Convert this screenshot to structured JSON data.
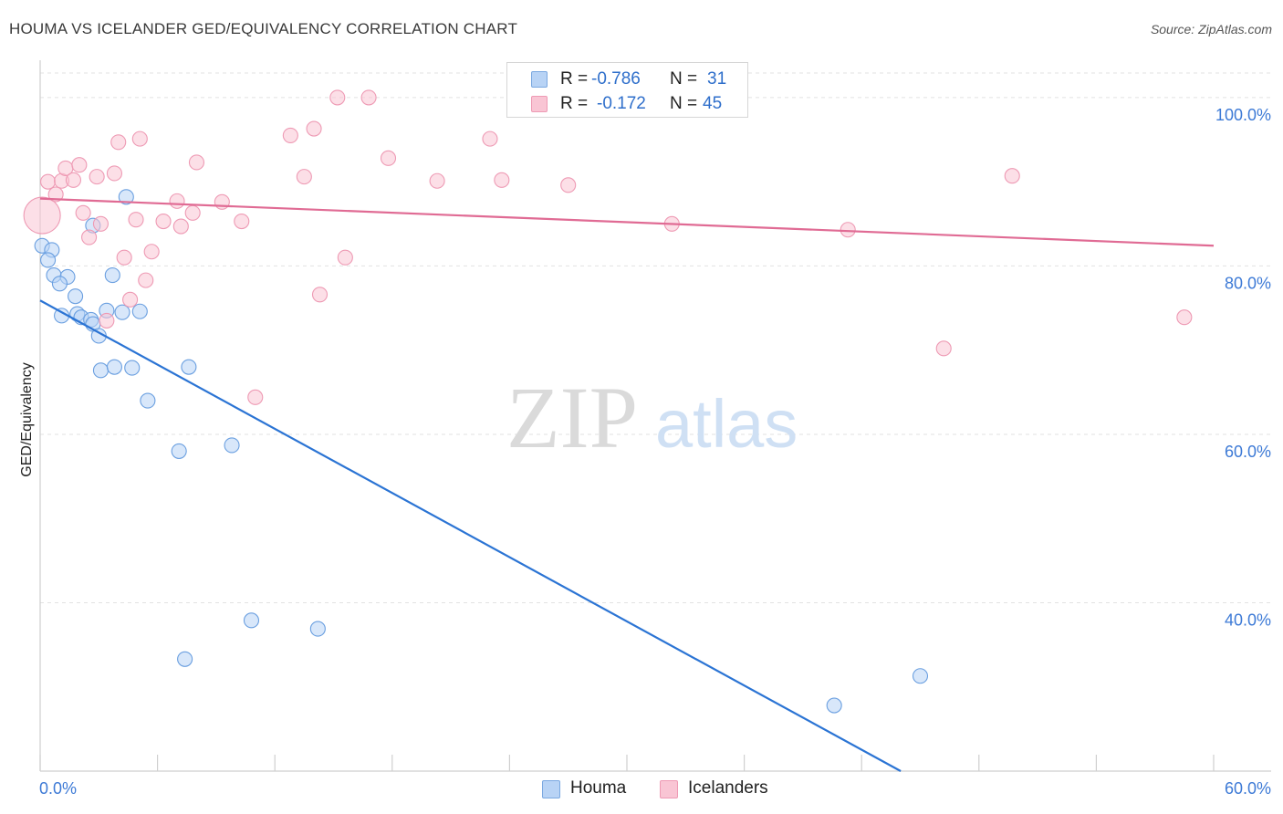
{
  "title": "HOUMA VS ICELANDER GED/EQUIVALENCY CORRELATION CHART",
  "source": "Source: ZipAtlas.com",
  "watermark": {
    "zip": "ZIP",
    "atlas": "atlas"
  },
  "legend": {
    "rows": [
      {
        "r_label": "R =",
        "r_value": "-0.786",
        "n_label": "N =",
        "n_value": "31"
      },
      {
        "r_label": "R =",
        "r_value": "-0.172",
        "n_label": "N =",
        "n_value": "45"
      }
    ]
  },
  "bottom_legend": {
    "houma": "Houma",
    "icelanders": "Icelanders"
  },
  "colors": {
    "houma_fill": "#b8d3f5",
    "houma_stroke": "#6a9fe0",
    "houma_line": "#2b74d4",
    "ice_fill": "#f9c5d4",
    "ice_stroke": "#ee9ab4",
    "ice_line": "#e06b94",
    "tick_label": "#3d7ad6",
    "grid": "#e2e2e2"
  },
  "chart_data": {
    "type": "scatter",
    "title": "HOUMA VS ICELANDER GED/EQUIVALENCY CORRELATION CHART",
    "xlabel": "",
    "ylabel": "GED/Equivalency",
    "xlim": [
      0,
      60
    ],
    "ylim": [
      20,
      104
    ],
    "x_tick_labels": [
      "0.0%",
      "60.0%"
    ],
    "y_ticks": [
      40,
      60,
      80,
      100
    ],
    "y_tick_labels": [
      "40.0%",
      "60.0%",
      "80.0%",
      "100.0%"
    ],
    "grid": true,
    "legend_position": "top-center",
    "series": [
      {
        "name": "Houma",
        "r": -0.786,
        "n": 31,
        "points": [
          [
            0.1,
            82.4
          ],
          [
            0.6,
            81.9
          ],
          [
            0.4,
            80.7
          ],
          [
            0.7,
            78.9
          ],
          [
            1.4,
            78.7
          ],
          [
            1.0,
            77.9
          ],
          [
            1.8,
            76.4
          ],
          [
            1.1,
            74.1
          ],
          [
            1.9,
            74.3
          ],
          [
            2.1,
            73.9
          ],
          [
            2.6,
            73.6
          ],
          [
            2.7,
            73.1
          ],
          [
            3.0,
            71.7
          ],
          [
            3.4,
            74.7
          ],
          [
            4.2,
            74.5
          ],
          [
            5.1,
            74.6
          ],
          [
            3.7,
            78.9
          ],
          [
            4.4,
            88.2
          ],
          [
            2.7,
            84.8
          ],
          [
            3.1,
            67.6
          ],
          [
            3.8,
            68.0
          ],
          [
            4.7,
            67.9
          ],
          [
            5.5,
            64.0
          ],
          [
            7.6,
            68.0
          ],
          [
            7.1,
            58.0
          ],
          [
            9.8,
            58.7
          ],
          [
            10.8,
            37.9
          ],
          [
            14.2,
            36.9
          ],
          [
            7.4,
            33.3
          ],
          [
            45.0,
            31.3
          ],
          [
            40.6,
            27.8
          ]
        ],
        "trend": [
          [
            0,
            75.9
          ],
          [
            44,
            20
          ]
        ]
      },
      {
        "name": "Icelanders",
        "r": -0.172,
        "n": 45,
        "points": [
          [
            0.1,
            86.0
          ],
          [
            0.4,
            90.0
          ],
          [
            0.8,
            88.5
          ],
          [
            1.1,
            90.1
          ],
          [
            1.3,
            91.6
          ],
          [
            1.7,
            90.2
          ],
          [
            2.0,
            92.0
          ],
          [
            2.2,
            86.3
          ],
          [
            2.5,
            83.4
          ],
          [
            2.9,
            90.6
          ],
          [
            3.1,
            85.0
          ],
          [
            3.4,
            73.5
          ],
          [
            3.8,
            91.0
          ],
          [
            4.0,
            94.7
          ],
          [
            4.3,
            81.0
          ],
          [
            4.6,
            76.0
          ],
          [
            4.9,
            85.5
          ],
          [
            5.1,
            95.1
          ],
          [
            5.4,
            78.3
          ],
          [
            5.7,
            81.7
          ],
          [
            6.3,
            85.3
          ],
          [
            7.0,
            87.7
          ],
          [
            7.2,
            84.7
          ],
          [
            7.8,
            86.3
          ],
          [
            8.0,
            92.3
          ],
          [
            9.3,
            87.6
          ],
          [
            10.3,
            85.3
          ],
          [
            11.0,
            64.4
          ],
          [
            12.8,
            95.5
          ],
          [
            13.5,
            90.6
          ],
          [
            14.0,
            96.3
          ],
          [
            14.3,
            76.6
          ],
          [
            15.2,
            100.0
          ],
          [
            15.6,
            81.0
          ],
          [
            16.8,
            100.0
          ],
          [
            17.8,
            92.8
          ],
          [
            20.3,
            90.1
          ],
          [
            23.0,
            95.1
          ],
          [
            23.6,
            90.2
          ],
          [
            27.0,
            89.6
          ],
          [
            32.3,
            85.0
          ],
          [
            41.3,
            84.3
          ],
          [
            46.2,
            70.2
          ],
          [
            49.7,
            90.7
          ],
          [
            58.5,
            73.9
          ]
        ],
        "trend": [
          [
            0,
            88.0
          ],
          [
            60,
            82.4
          ]
        ]
      }
    ]
  }
}
